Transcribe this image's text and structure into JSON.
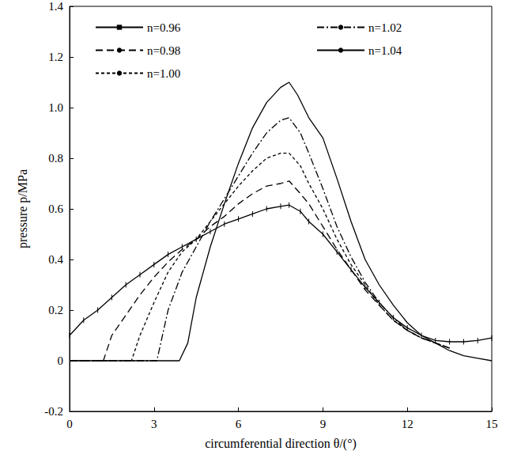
{
  "chart_data": {
    "type": "line",
    "x_label": "circumferential direction θ/(°)",
    "y_label": "pressure p/MPa",
    "xlim": [
      0,
      15
    ],
    "xticks": [
      0,
      3,
      6,
      9,
      12,
      15
    ],
    "ylim": [
      -0.2,
      1.4
    ],
    "yticks": [
      -0.2,
      0,
      0.2,
      0.4,
      0.6,
      0.8,
      {
        "value": 1,
        "label": "1.0"
      },
      1.2,
      1.4
    ],
    "grid": false,
    "legend": "top",
    "series": [
      {
        "name": "n=0.96",
        "color": "#000000",
        "line_style": "solid",
        "marker": "tick",
        "x": [
          0,
          0.5,
          1,
          1.5,
          2,
          2.5,
          3,
          3.5,
          4,
          4.5,
          5,
          5.5,
          6,
          6.5,
          7,
          7.5,
          7.8,
          8.2,
          8.5,
          9,
          9.5,
          10,
          10.5,
          11,
          11.5,
          12,
          12.5,
          13,
          13.5,
          14,
          14.5,
          15
        ],
        "values": [
          0.1,
          0.16,
          0.2,
          0.25,
          0.3,
          0.34,
          0.38,
          0.42,
          0.45,
          0.48,
          0.51,
          0.54,
          0.56,
          0.58,
          0.6,
          0.61,
          0.615,
          0.59,
          0.55,
          0.5,
          0.43,
          0.36,
          0.29,
          0.23,
          0.17,
          0.13,
          0.1,
          0.08,
          0.075,
          0.075,
          0.08,
          0.09
        ]
      },
      {
        "name": "n=0.98",
        "color": "#000000",
        "line_style": "dashed",
        "marker": "none",
        "x": [
          0,
          1.2,
          1.5,
          2,
          2.5,
          3,
          3.5,
          4,
          4.5,
          5,
          5.5,
          6,
          6.5,
          7,
          7.5,
          7.8,
          8.2,
          8.5,
          9,
          9.5,
          10,
          10.5,
          11,
          11.5,
          12,
          12.5,
          13,
          13.5
        ],
        "values": [
          0,
          0,
          0.1,
          0.18,
          0.26,
          0.33,
          0.39,
          0.44,
          0.48,
          0.53,
          0.57,
          0.62,
          0.66,
          0.69,
          0.7,
          0.71,
          0.66,
          0.62,
          0.53,
          0.44,
          0.36,
          0.28,
          0.22,
          0.16,
          0.12,
          0.09,
          0.07,
          0.05
        ]
      },
      {
        "name": "n=1.00",
        "color": "#000000",
        "line_style": "short_dashed",
        "marker": "none",
        "x": [
          0,
          2.2,
          2.5,
          3,
          3.5,
          4,
          4.5,
          5,
          5.5,
          6,
          6.5,
          7,
          7.5,
          7.8,
          8.2,
          8.5,
          9,
          9.5,
          10,
          10.5,
          11,
          11.5,
          12,
          12.5,
          13,
          13.5
        ],
        "values": [
          0,
          0,
          0.1,
          0.23,
          0.35,
          0.43,
          0.48,
          0.55,
          0.62,
          0.69,
          0.75,
          0.8,
          0.82,
          0.82,
          0.77,
          0.7,
          0.6,
          0.48,
          0.38,
          0.3,
          0.22,
          0.16,
          0.12,
          0.09,
          0.07,
          0.05
        ]
      },
      {
        "name": "n=1.02",
        "color": "#000000",
        "line_style": "dashdot",
        "marker": "none",
        "x": [
          0,
          3.1,
          3.5,
          4,
          4.5,
          5,
          5.5,
          6,
          6.5,
          7,
          7.5,
          7.8,
          8.2,
          8.5,
          9,
          9.5,
          10,
          10.5,
          11,
          11.5,
          12,
          12.5,
          13,
          13.5
        ],
        "values": [
          0,
          0,
          0.2,
          0.35,
          0.45,
          0.55,
          0.64,
          0.73,
          0.82,
          0.9,
          0.95,
          0.96,
          0.9,
          0.82,
          0.68,
          0.53,
          0.41,
          0.31,
          0.23,
          0.17,
          0.12,
          0.09,
          0.07,
          0.05
        ]
      },
      {
        "name": "n=1.04",
        "color": "#000000",
        "line_style": "solid",
        "marker": "none",
        "x": [
          0,
          3.9,
          4.2,
          4.5,
          5,
          5.5,
          6,
          6.5,
          7,
          7.5,
          7.8,
          8.1,
          8.5,
          9,
          9.5,
          10,
          10.5,
          11,
          11.5,
          12,
          12.5,
          13,
          13.5,
          14,
          14.5,
          15
        ],
        "values": [
          0,
          0,
          0.07,
          0.25,
          0.45,
          0.62,
          0.78,
          0.92,
          1.02,
          1.08,
          1.1,
          1.05,
          0.96,
          0.88,
          0.72,
          0.55,
          0.4,
          0.3,
          0.22,
          0.15,
          0.1,
          0.07,
          0.04,
          0.02,
          0.01,
          0
        ]
      }
    ]
  }
}
